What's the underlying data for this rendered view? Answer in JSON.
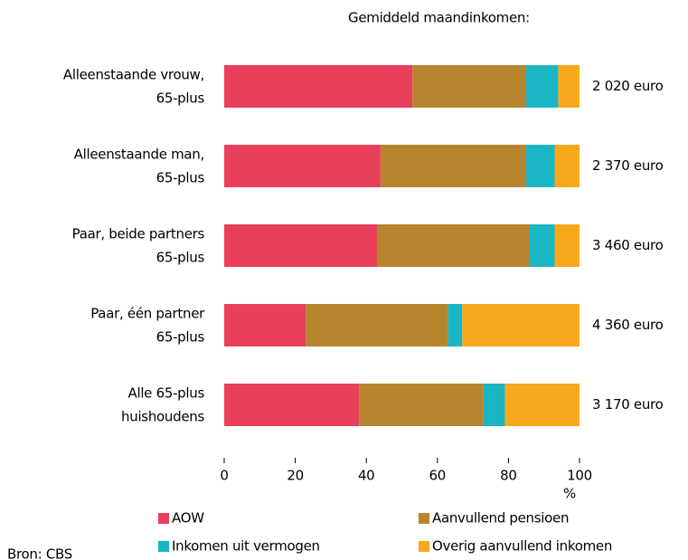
{
  "chart_data": {
    "type": "stacked_barh",
    "categories": [
      [
        "Alleenstaande vrouw,",
        "65-plus"
      ],
      [
        "Alleenstaande man,",
        "65-plus"
      ],
      [
        "Paar, beide partners",
        "65-plus"
      ],
      [
        "Paar, één partner",
        "65-plus"
      ],
      [
        "Alle 65-plus",
        "huishoudens"
      ]
    ],
    "series": [
      {
        "name": "AOW",
        "color": "#e8405a",
        "values": [
          53,
          44,
          43,
          23,
          38
        ]
      },
      {
        "name": "Aanvullend pensioen",
        "color": "#b8852f",
        "values": [
          32,
          41,
          43,
          40,
          35
        ]
      },
      {
        "name": "Inkomen uit vermogen",
        "color": "#1bb6c4",
        "values": [
          9,
          8,
          7,
          4,
          6
        ]
      },
      {
        "name": "Overig aanvullend inkomen",
        "color": "#f7a81c",
        "values": [
          6,
          7,
          7,
          33,
          21
        ]
      }
    ],
    "income_title": "Gemiddeld maandinkomen:",
    "incomes": [
      "2 020 euro",
      "2 370 euro",
      "3 460 euro",
      "4 360 euro",
      "3 170 euro"
    ],
    "xlim": [
      0,
      100
    ],
    "xticks": [
      0,
      20,
      40,
      60,
      80,
      100
    ],
    "xlabel": "%",
    "source": "Bron: CBS"
  }
}
